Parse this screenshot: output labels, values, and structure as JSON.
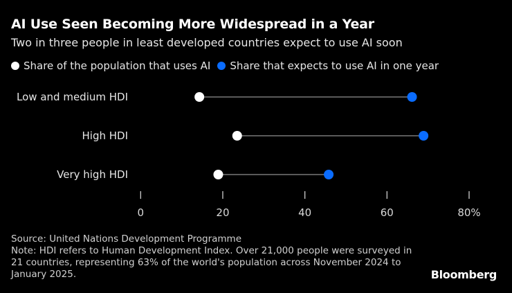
{
  "title": "AI Use Seen Becoming More Widespread in a Year",
  "subtitle": "Two in three people in least developed countries expect to use AI soon",
  "source": "Source: United Nations Development Programme",
  "note": "Note: HDI refers to Human Development Index. Over 21,000 people were surveyed in 21 countries, representing 63% of the world's population across November 2024 to January 2025.",
  "logo": "Bloomberg",
  "colors": {
    "current": "#ffffff",
    "expected": "#0a6cff",
    "connector": "#5a5a5a"
  },
  "chart_data": {
    "type": "dumbbell",
    "title": "AI Use Seen Becoming More Widespread in a Year",
    "categories": [
      "Low and medium HDI",
      "High HDI",
      "Very high HDI"
    ],
    "series": [
      {
        "name": "Share of the population that uses AI",
        "values": [
          14.3,
          23.5,
          18.9
        ]
      },
      {
        "name": "Share that expects to use AI in one year",
        "values": [
          66.1,
          68.9,
          45.8
        ]
      }
    ],
    "xlim": [
      0,
      80
    ],
    "xticks": [
      "0",
      "20",
      "40",
      "60",
      "80%"
    ],
    "xtick_values": [
      0,
      20,
      40,
      60,
      80
    ],
    "legend_position": "top-left",
    "grid": false
  }
}
